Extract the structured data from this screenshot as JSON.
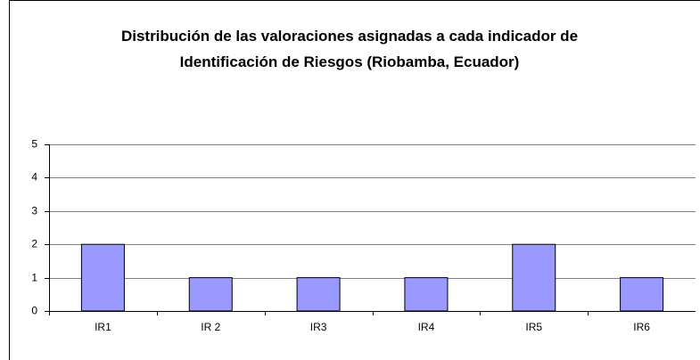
{
  "chart_data": {
    "type": "bar",
    "title": "Distribución de las valoraciones asignadas a cada indicador de Identificación de Riesgos (Riobamba, Ecuador)",
    "categories": [
      "IR1",
      "IR 2",
      "IR3",
      "IR4",
      "IR5",
      "IR6"
    ],
    "values": [
      2,
      1,
      1,
      1,
      2,
      1
    ],
    "color": "#9999ff",
    "ylim": [
      0,
      5
    ],
    "yticks": [
      0,
      1,
      2,
      3,
      4,
      5
    ],
    "grid": true
  }
}
